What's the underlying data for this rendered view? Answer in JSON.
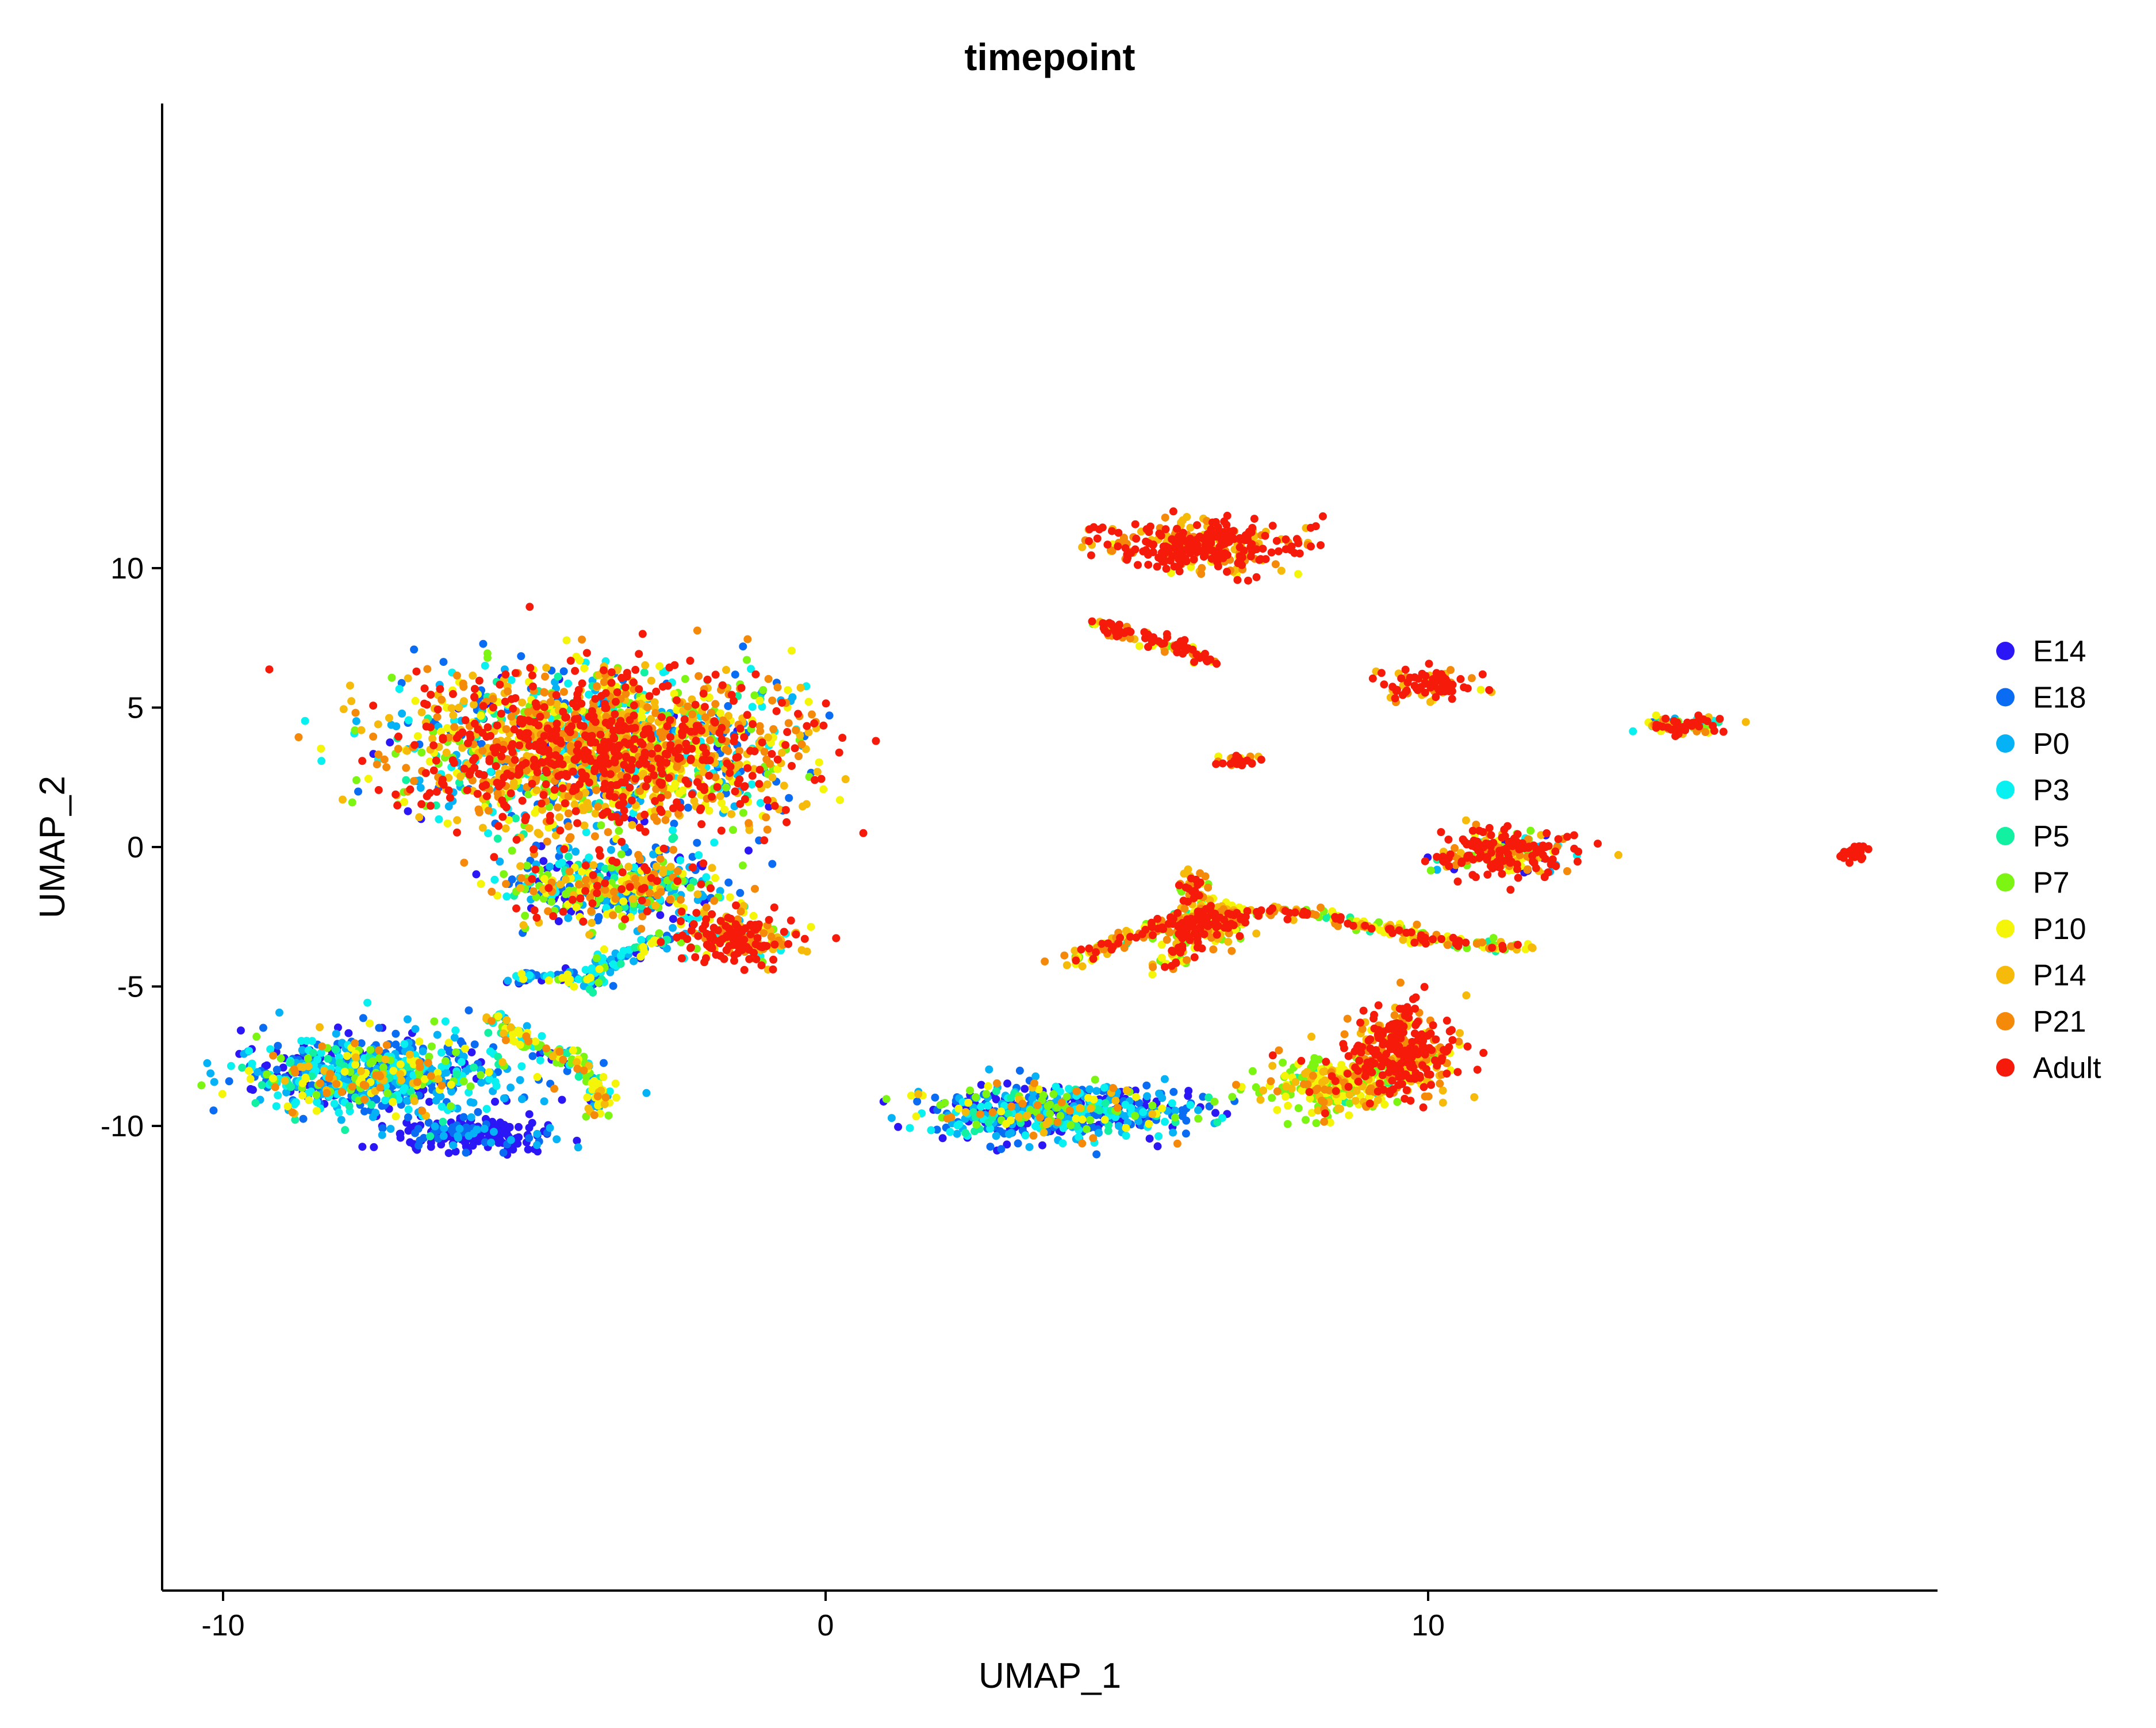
{
  "chart_data": {
    "type": "scatter",
    "title": "timepoint",
    "xlabel": "UMAP_1",
    "ylabel": "UMAP_2",
    "xlim": [
      -11,
      18.5
    ],
    "ylim": [
      -13.3,
      13.3
    ],
    "xticks": [
      -10,
      0,
      10
    ],
    "xtick_labels": [
      "-10",
      "0",
      "10"
    ],
    "yticks": [
      -10,
      -5,
      0,
      5,
      10
    ],
    "ytick_labels": [
      "-10",
      "-5",
      "0",
      "5",
      "10"
    ],
    "grid": false,
    "legend_position": "right",
    "series": [
      {
        "name": "E14",
        "color": "#2B16F5"
      },
      {
        "name": "E18",
        "color": "#0A6CF2"
      },
      {
        "name": "P0",
        "color": "#05B2F5"
      },
      {
        "name": "P3",
        "color": "#08F0F0"
      },
      {
        "name": "P5",
        "color": "#12F0A2"
      },
      {
        "name": "P7",
        "color": "#7CF512"
      },
      {
        "name": "P10",
        "color": "#F5F50A"
      },
      {
        "name": "P14",
        "color": "#F5BA0A"
      },
      {
        "name": "P21",
        "color": "#F58A0A"
      },
      {
        "name": "Adult",
        "color": "#F51A0A"
      }
    ],
    "clusters": [
      {
        "center": [
          -3.8,
          3.5
        ],
        "spread": [
          3.2,
          2.8
        ],
        "weights": [
          1,
          2,
          2,
          2,
          1,
          3,
          4,
          5,
          5,
          8
        ]
      },
      {
        "center": [
          -3.5,
          -1.5
        ],
        "spread": [
          1.8,
          1.2
        ],
        "weights": [
          3,
          3,
          3,
          3,
          2,
          3,
          3,
          2,
          2,
          2
        ]
      },
      {
        "center": [
          -1.5,
          -3.3
        ],
        "spread": [
          0.9,
          1.0
        ],
        "weights": [
          0,
          0,
          1,
          1,
          0,
          1,
          1,
          2,
          2,
          8
        ]
      },
      {
        "center": [
          -7.5,
          -8.2
        ],
        "spread": [
          2.2,
          1.4
        ],
        "weights": [
          5,
          6,
          6,
          5,
          2,
          2,
          2,
          1,
          1,
          0
        ]
      },
      {
        "center": [
          -5.8,
          -10.3
        ],
        "spread": [
          1.3,
          0.6
        ],
        "weights": [
          9,
          2,
          1,
          0,
          0,
          0,
          0,
          0,
          0,
          0
        ]
      },
      {
        "center": [
          6.2,
          10.8
        ],
        "spread": [
          1.6,
          0.9
        ],
        "weights": [
          0,
          0,
          0,
          0,
          0,
          0,
          1,
          2,
          2,
          9
        ]
      },
      {
        "center": [
          10.0,
          5.8
        ],
        "spread": [
          0.8,
          0.5
        ],
        "weights": [
          0,
          0,
          0,
          0,
          0,
          0,
          1,
          2,
          2,
          8
        ]
      },
      {
        "center": [
          14.2,
          4.4
        ],
        "spread": [
          0.8,
          0.4
        ],
        "weights": [
          0,
          1,
          1,
          1,
          1,
          1,
          2,
          2,
          2,
          5
        ]
      },
      {
        "center": [
          6.8,
          3.1
        ],
        "spread": [
          0.4,
          0.3
        ],
        "weights": [
          0,
          0,
          0,
          0,
          0,
          1,
          1,
          2,
          2,
          7
        ]
      },
      {
        "center": [
          11.3,
          -0.2
        ],
        "spread": [
          1.1,
          0.9
        ],
        "weights": [
          1,
          0,
          1,
          1,
          1,
          1,
          1,
          2,
          2,
          9
        ]
      },
      {
        "center": [
          6.3,
          -2.8
        ],
        "spread": [
          0.7,
          0.9
        ],
        "weights": [
          0,
          0,
          0,
          0,
          0,
          3,
          4,
          3,
          3,
          6
        ]
      },
      {
        "center": [
          3.8,
          -9.5
        ],
        "spread": [
          2.4,
          1.0
        ],
        "weights": [
          6,
          6,
          5,
          3,
          1,
          2,
          1,
          1,
          1,
          0
        ]
      },
      {
        "center": [
          8.5,
          -8.5
        ],
        "spread": [
          1.2,
          1.0
        ],
        "weights": [
          0,
          0,
          0,
          0,
          1,
          6,
          6,
          3,
          2,
          1
        ]
      },
      {
        "center": [
          9.6,
          -7.3
        ],
        "spread": [
          0.9,
          1.6
        ],
        "weights": [
          0,
          0,
          0,
          0,
          0,
          0,
          1,
          3,
          3,
          9
        ]
      },
      {
        "center": [
          10.3,
          -0.5
        ],
        "spread": [
          0.2,
          0.2
        ],
        "weights": [
          0,
          0,
          0,
          0,
          0,
          0,
          0,
          0,
          0,
          1
        ]
      }
    ],
    "paths": [
      {
        "points": [
          [
            4.5,
            8.0
          ],
          [
            5.3,
            7.5
          ],
          [
            5.8,
            7.2
          ],
          [
            6.4,
            6.6
          ]
        ],
        "weights": [
          0,
          0,
          0,
          0,
          0,
          1,
          1,
          1,
          2,
          5
        ]
      },
      {
        "points": [
          [
            4.0,
            -4.2
          ],
          [
            5.0,
            -3.2
          ],
          [
            6.3,
            -2.4
          ],
          [
            8.0,
            -2.3
          ],
          [
            10.0,
            -3.3
          ],
          [
            11.5,
            -3.6
          ]
        ],
        "weights": [
          0,
          0,
          0,
          0,
          1,
          3,
          3,
          3,
          3,
          4
        ]
      },
      {
        "points": [
          [
            6.0,
            -1.0
          ],
          [
            6.3,
            -2.0
          ],
          [
            5.9,
            -3.5
          ],
          [
            5.7,
            -4.4
          ]
        ],
        "weights": [
          0,
          0,
          0,
          0,
          1,
          3,
          2,
          3,
          2,
          5
        ]
      },
      {
        "points": [
          [
            -2.5,
            -3.2
          ],
          [
            -3.6,
            -4.0
          ],
          [
            -3.9,
            -5.0
          ],
          [
            -4.3,
            -4.6
          ],
          [
            -5.2,
            -4.7
          ]
        ],
        "weights": [
          2,
          3,
          3,
          2,
          1,
          1,
          1,
          0,
          0,
          0
        ]
      },
      {
        "points": [
          [
            -5.5,
            -6.0
          ],
          [
            -5.0,
            -7.0
          ],
          [
            -4.0,
            -7.8
          ],
          [
            -3.7,
            -8.8
          ],
          [
            -3.8,
            -9.5
          ]
        ],
        "weights": [
          1,
          1,
          2,
          3,
          2,
          3,
          4,
          2,
          1,
          0
        ]
      },
      {
        "points": [
          [
            16.8,
            -0.5
          ],
          [
            17.2,
            -0.05
          ]
        ],
        "weights": [
          0,
          0,
          0,
          0,
          0,
          0,
          0,
          0,
          0,
          1
        ]
      }
    ]
  }
}
